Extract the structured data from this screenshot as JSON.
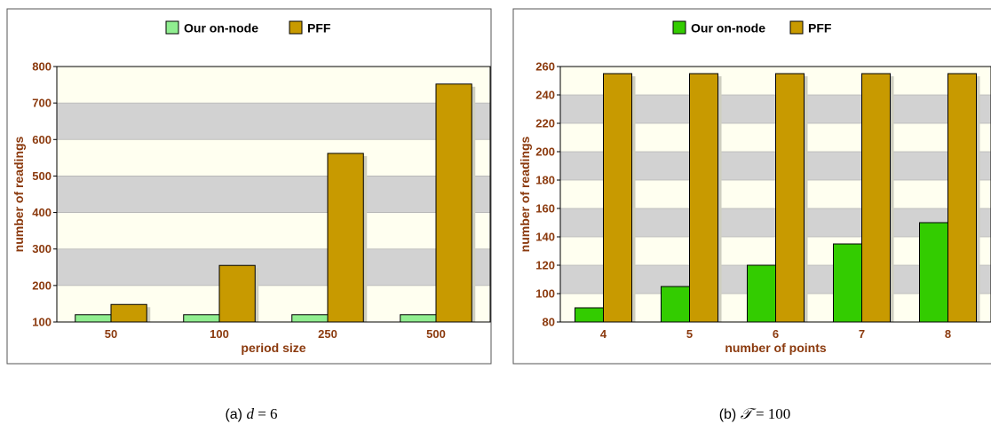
{
  "chart_data": [
    {
      "type": "bar",
      "caption": {
        "prefix": "(a) ",
        "var": "d",
        "rest": " = 6"
      },
      "xlabel": "period size",
      "ylabel": "number of readings",
      "categories": [
        "50",
        "100",
        "250",
        "500"
      ],
      "ylim": [
        100,
        800
      ],
      "yticks": [
        100,
        200,
        300,
        400,
        500,
        600,
        700,
        800
      ],
      "series": [
        {
          "name": "Our on-node",
          "color": "#90ee90",
          "values": [
            120,
            120,
            120,
            120
          ]
        },
        {
          "name": "PFF",
          "color": "#c89a00",
          "values": [
            148,
            255,
            562,
            752
          ]
        }
      ],
      "legend_position": "top-center",
      "grid": "alternating horizontal bands"
    },
    {
      "type": "bar",
      "caption": {
        "prefix": "(b) ",
        "var": "𝒯",
        "rest": " = 100"
      },
      "xlabel": "number of points",
      "ylabel": "number of readings",
      "categories": [
        "4",
        "5",
        "6",
        "7",
        "8"
      ],
      "ylim": [
        80,
        260
      ],
      "yticks": [
        80,
        100,
        120,
        140,
        160,
        180,
        200,
        220,
        240,
        260
      ],
      "series": [
        {
          "name": "Our on-node",
          "color": "#33cc00",
          "values": [
            90,
            105,
            120,
            135,
            150
          ]
        },
        {
          "name": "PFF",
          "color": "#c89a00",
          "values": [
            255,
            255,
            255,
            255,
            255
          ]
        }
      ],
      "legend_position": "top-center",
      "grid": "alternating horizontal bands"
    }
  ]
}
